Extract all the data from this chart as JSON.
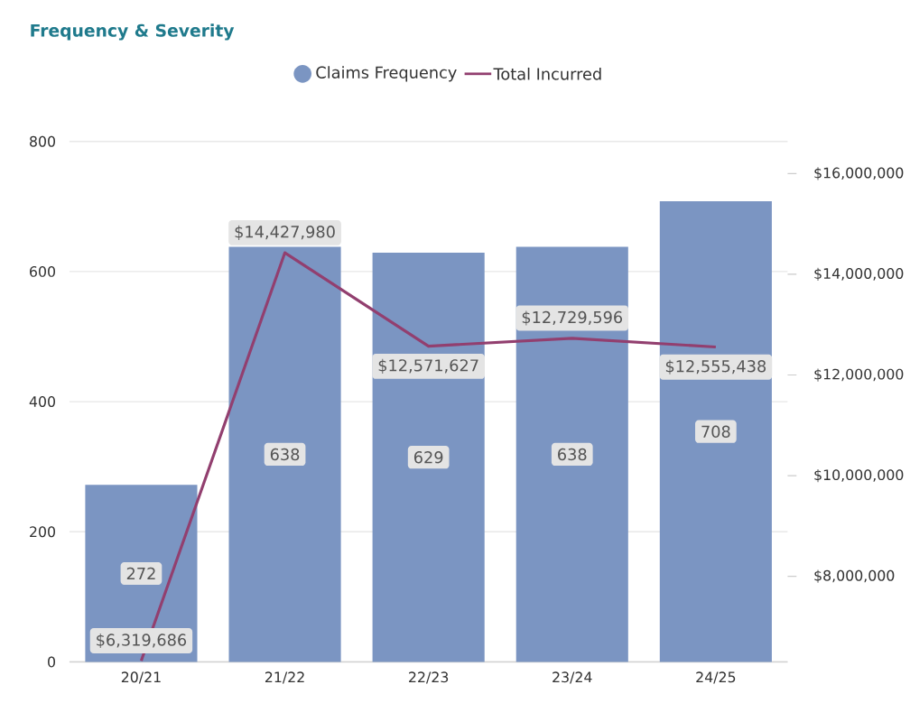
{
  "chart_data": {
    "type": "bar",
    "title": "Frequency & Severity",
    "categories": [
      "20/21",
      "21/22",
      "22/23",
      "23/24",
      "24/25"
    ],
    "series": [
      {
        "name": "Claims Frequency",
        "color": "#7b95c2",
        "values": [
          272,
          638,
          629,
          638,
          708
        ],
        "value_labels": [
          "272",
          "638",
          "629",
          "638",
          "708"
        ]
      },
      {
        "name": "Total Incurred",
        "type": "line",
        "axis": "y2",
        "color": "#923f6f",
        "values": [
          6319686,
          14427980,
          12571627,
          12729596,
          12555438
        ],
        "value_labels": [
          "$6,319,686",
          "$14,427,980",
          "$12,571,627",
          "$12,729,596",
          "$12,555,438"
        ]
      }
    ],
    "ylim": [
      0,
      800
    ],
    "yticks": [
      0,
      200,
      400,
      600,
      800
    ],
    "y2lim": [
      6300000,
      16640000
    ],
    "y2ticks": [
      {
        "value": 8000000,
        "label": "$8,000,000"
      },
      {
        "value": 10000000,
        "label": "$10,000,000"
      },
      {
        "value": 12000000,
        "label": "$12,000,000"
      },
      {
        "value": 14000000,
        "label": "$14,000,000"
      },
      {
        "value": 16000000,
        "label": "$16,000,000"
      }
    ],
    "grid": "y",
    "legend": "top",
    "line_style": "solid",
    "marker": "none"
  }
}
